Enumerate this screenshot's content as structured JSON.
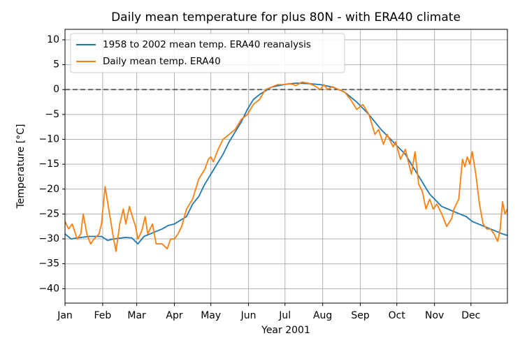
{
  "chart_data": {
    "type": "line",
    "title": "Daily mean temperature for plus 80N - with ERA40 climate",
    "xlabel": "Year 2001",
    "ylabel": "Temperature [°C]",
    "xlim": [
      0,
      364
    ],
    "ylim": [
      -42.9,
      12.1
    ],
    "xticks": [
      {
        "value": 0,
        "label": "Jan"
      },
      {
        "value": 31,
        "label": "Feb"
      },
      {
        "value": 59,
        "label": "Mar"
      },
      {
        "value": 90,
        "label": "Apr"
      },
      {
        "value": 120,
        "label": "May"
      },
      {
        "value": 151,
        "label": "Jun"
      },
      {
        "value": 181,
        "label": "Jul"
      },
      {
        "value": 212,
        "label": "Aug"
      },
      {
        "value": 243,
        "label": "Sep"
      },
      {
        "value": 273,
        "label": "Oct"
      },
      {
        "value": 304,
        "label": "Nov"
      },
      {
        "value": 334,
        "label": "Dec"
      }
    ],
    "yticks": [
      10,
      5,
      0,
      {
        "value": -5,
        "label": "−5"
      },
      {
        "value": -10,
        "label": "−10"
      },
      {
        "value": -15,
        "label": "−15"
      },
      {
        "value": -20,
        "label": "−20"
      },
      {
        "value": -25,
        "label": "−25"
      },
      {
        "value": -30,
        "label": "−30"
      },
      {
        "value": -35,
        "label": "−35"
      },
      {
        "value": -40,
        "label": "−40"
      }
    ],
    "grid": true,
    "hline": 0,
    "legend": "upper left",
    "series": [
      {
        "name": "1958 to 2002 mean temp. ERA40 reanalysis",
        "color": "#1f77b4",
        "x": [
          0,
          5,
          10,
          20,
          30,
          35,
          40,
          50,
          55,
          60,
          65,
          70,
          80,
          85,
          90,
          100,
          105,
          110,
          115,
          120,
          125,
          130,
          135,
          140,
          145,
          150,
          155,
          160,
          170,
          180,
          190,
          200,
          210,
          220,
          230,
          240,
          250,
          260,
          270,
          280,
          290,
          300,
          310,
          320,
          330,
          335,
          340,
          350,
          360,
          364
        ],
        "values": [
          -29,
          -30,
          -29.8,
          -29.5,
          -29.5,
          -30.3,
          -30,
          -29.7,
          -29.8,
          -31,
          -29.5,
          -29,
          -28,
          -27.3,
          -27,
          -25.5,
          -23,
          -21.5,
          -19,
          -17,
          -15,
          -13,
          -10.5,
          -8.5,
          -6.5,
          -4,
          -2,
          -1,
          0.5,
          1,
          1.3,
          1.2,
          1,
          0.5,
          -0.5,
          -2.5,
          -5,
          -8,
          -10.5,
          -13,
          -17,
          -21,
          -23.5,
          -24.5,
          -25.5,
          -26.5,
          -27,
          -28,
          -29,
          -29.3
        ]
      },
      {
        "name": "Daily mean temp. ERA40",
        "color": "#ff7f0e",
        "x": [
          0,
          3,
          6,
          10,
          13,
          15,
          18,
          21,
          24,
          28,
          30,
          33,
          36,
          40,
          42,
          45,
          48,
          50,
          53,
          56,
          58,
          60,
          63,
          66,
          68,
          72,
          75,
          80,
          84,
          87,
          90,
          93,
          96,
          100,
          105,
          110,
          115,
          118,
          120,
          122,
          126,
          130,
          135,
          140,
          145,
          150,
          155,
          160,
          165,
          170,
          175,
          180,
          185,
          190,
          195,
          200,
          205,
          210,
          213,
          216,
          220,
          225,
          230,
          235,
          240,
          245,
          250,
          255,
          258,
          262,
          265,
          270,
          272,
          276,
          280,
          285,
          288,
          291,
          294,
          297,
          300,
          303,
          306,
          310,
          314,
          318,
          320,
          324,
          327,
          329,
          331,
          333,
          335,
          338,
          341,
          344,
          347,
          350,
          353,
          356,
          358,
          360,
          362,
          364
        ],
        "values": [
          -26.5,
          -28,
          -27,
          -30,
          -29,
          -25,
          -29,
          -31,
          -30,
          -29,
          -27,
          -19.5,
          -24,
          -30,
          -32.5,
          -27,
          -24,
          -27,
          -23.5,
          -26,
          -27.5,
          -30,
          -28.5,
          -25.5,
          -29,
          -27,
          -31,
          -31,
          -32,
          -30,
          -30,
          -29,
          -27.5,
          -24,
          -22,
          -18,
          -16,
          -14,
          -13.5,
          -14.5,
          -12,
          -10,
          -9,
          -8,
          -6,
          -5,
          -3,
          -2,
          0,
          0.5,
          1,
          1,
          1.2,
          0.8,
          1.5,
          1.3,
          0.8,
          0,
          1,
          0,
          0.6,
          0,
          -0.5,
          -2,
          -4,
          -3,
          -5,
          -9,
          -8,
          -11,
          -9,
          -11.5,
          -10.5,
          -14,
          -12,
          -17,
          -12.5,
          -19,
          -20.5,
          -24,
          -22,
          -24,
          -23,
          -25,
          -27.5,
          -26,
          -24,
          -22,
          -14,
          -15.5,
          -13.5,
          -15,
          -12.5,
          -17,
          -23,
          -27,
          -28,
          -28,
          -29,
          -30.5,
          -28,
          -22.5,
          -25,
          -24
        ]
      }
    ]
  }
}
